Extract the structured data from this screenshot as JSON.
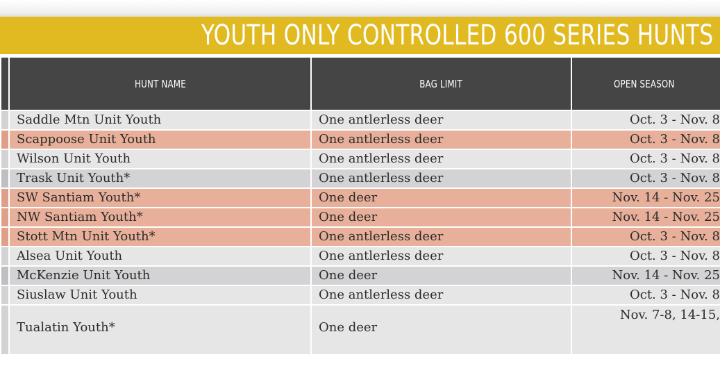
{
  "header": {
    "title": "YOUTH ONLY CONTROLLED 600 SERIES HUNTS"
  },
  "table": {
    "columns": [
      "HUNT NAME",
      "BAG LIMIT",
      "OPEN SEASON"
    ],
    "rows": [
      {
        "name": "Saddle Mtn Unit Youth",
        "bag": "One antlerless deer",
        "season": "Oct. 3 - Nov. 8",
        "tone": "light"
      },
      {
        "name": "Scappoose Unit Youth",
        "bag": "One antlerless deer",
        "season": "Oct. 3 - Nov. 8",
        "tone": "salmon"
      },
      {
        "name": "Wilson Unit Youth",
        "bag": "One antlerless deer",
        "season": "Oct. 3 - Nov. 8",
        "tone": "light"
      },
      {
        "name": "Trask Unit Youth*",
        "bag": "One antlerless deer",
        "season": "Oct. 3 - Nov. 8",
        "tone": "dark"
      },
      {
        "name": "SW Santiam Youth*",
        "bag": "One deer",
        "season": "Nov. 14 - Nov. 25",
        "tone": "salmon"
      },
      {
        "name": "NW Santiam Youth*",
        "bag": "One deer",
        "season": "Nov. 14 - Nov. 25",
        "tone": "salmon"
      },
      {
        "name": "Stott Mtn Unit Youth*",
        "bag": "One antlerless deer",
        "season": "Oct. 3 - Nov. 8",
        "tone": "salmon"
      },
      {
        "name": "Alsea Unit Youth",
        "bag": "One antlerless deer",
        "season": "Oct. 3 - Nov. 8",
        "tone": "light"
      },
      {
        "name": "McKenzie Unit Youth",
        "bag": "One deer",
        "season": "Nov. 14 - Nov. 25",
        "tone": "dark"
      },
      {
        "name": "Siuslaw Unit Youth",
        "bag": "One antlerless deer",
        "season": "Oct. 3 - Nov. 8",
        "tone": "light"
      },
      {
        "name": "Tualatin Youth*",
        "bag": "One deer",
        "season": "Nov. 7-8, 14-15,",
        "tone": "light",
        "tall": true
      }
    ]
  }
}
